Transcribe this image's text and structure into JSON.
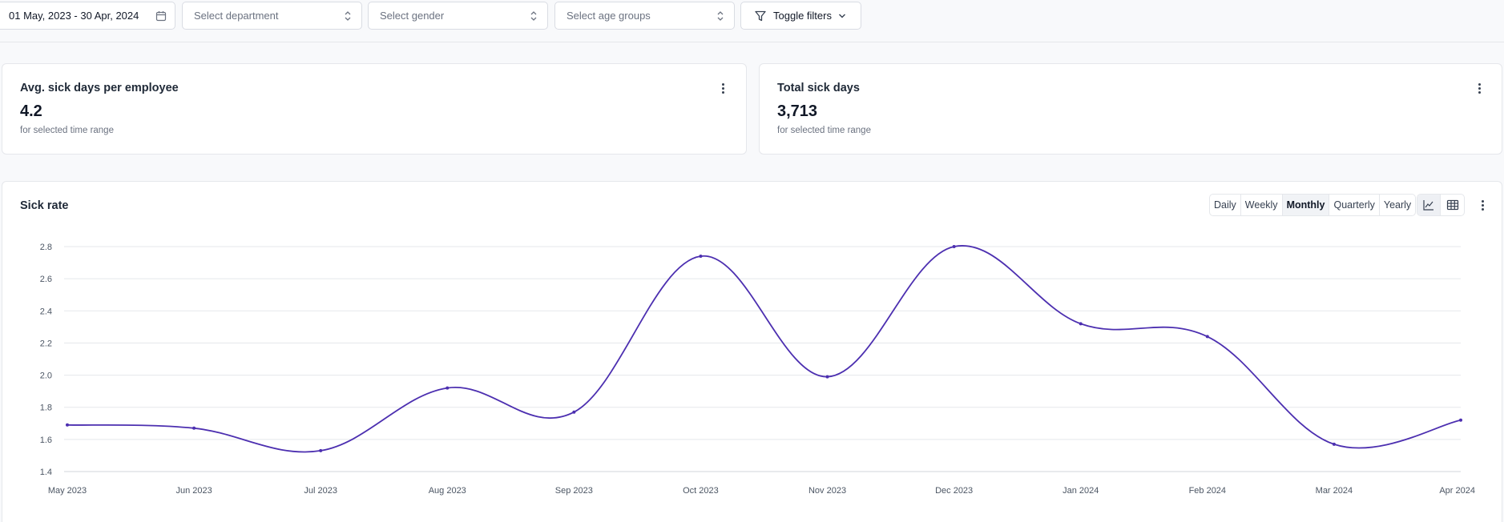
{
  "filters": {
    "date_range": "01 May, 2023 - 30 Apr, 2024",
    "department_placeholder": "Select department",
    "gender_placeholder": "Select gender",
    "age_placeholder": "Select age groups",
    "toggle_label": "Toggle filters"
  },
  "kpis": [
    {
      "title": "Avg. sick days per employee",
      "value": "4.2",
      "subtitle": "for selected time range"
    },
    {
      "title": "Total sick days",
      "value": "3,713",
      "subtitle": "for selected time range"
    }
  ],
  "chart_panel": {
    "title": "Sick rate",
    "granularity": [
      "Daily",
      "Weekly",
      "Monthly",
      "Quarterly",
      "Yearly"
    ],
    "active_granularity": "Monthly",
    "view_icons": [
      "line-chart-icon",
      "table-icon"
    ]
  },
  "colors": {
    "line": "#4c2fb0",
    "grid": "#e5e7eb",
    "axis": "#d1d5db"
  },
  "chart_data": {
    "type": "line",
    "title": "Sick rate",
    "xlabel": "",
    "ylabel": "",
    "categories": [
      "May 2023",
      "Jun 2023",
      "Jul 2023",
      "Aug 2023",
      "Sep 2023",
      "Oct 2023",
      "Nov 2023",
      "Dec 2023",
      "Jan 2024",
      "Feb 2024",
      "Mar 2024",
      "Apr 2024"
    ],
    "series": [
      {
        "name": "Sick rate",
        "values": [
          1.69,
          1.67,
          1.53,
          1.92,
          1.77,
          2.74,
          1.99,
          2.8,
          2.32,
          2.24,
          1.57,
          1.72
        ]
      }
    ],
    "y_ticks": [
      "1.4",
      "1.6",
      "1.8",
      "2.0",
      "2.2",
      "2.4",
      "2.6",
      "2.8"
    ],
    "ylim": [
      1.4,
      2.8
    ],
    "grid": true
  }
}
